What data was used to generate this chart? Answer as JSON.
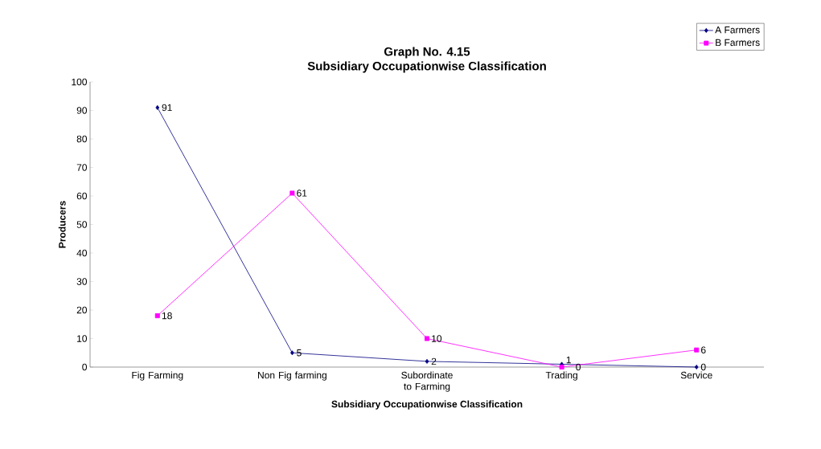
{
  "chart_data": {
    "type": "line",
    "title": "Graph No. 4.15",
    "subtitle": "Subsidiary Occupationwise Classification",
    "xlabel": "Subsidiary Occupationwise Classification",
    "ylabel": "Producers",
    "categories": [
      "Fig Farming",
      "Non Fig farming",
      "Subordinate to Farming",
      "Trading",
      "Service"
    ],
    "series": [
      {
        "name": "A Farmers",
        "color": "#000080",
        "marker": "diamond",
        "values": [
          91,
          5,
          2,
          1,
          0
        ]
      },
      {
        "name": "B Farmers",
        "color": "#ff00ff",
        "marker": "square",
        "values": [
          18,
          61,
          10,
          0,
          6
        ]
      }
    ],
    "ylim": [
      0,
      100
    ],
    "yticks": [
      0,
      10,
      20,
      30,
      40,
      50,
      60,
      70,
      80,
      90,
      100
    ],
    "grid": false,
    "legend": "top right",
    "data_labels": true,
    "line_style": "solid"
  }
}
